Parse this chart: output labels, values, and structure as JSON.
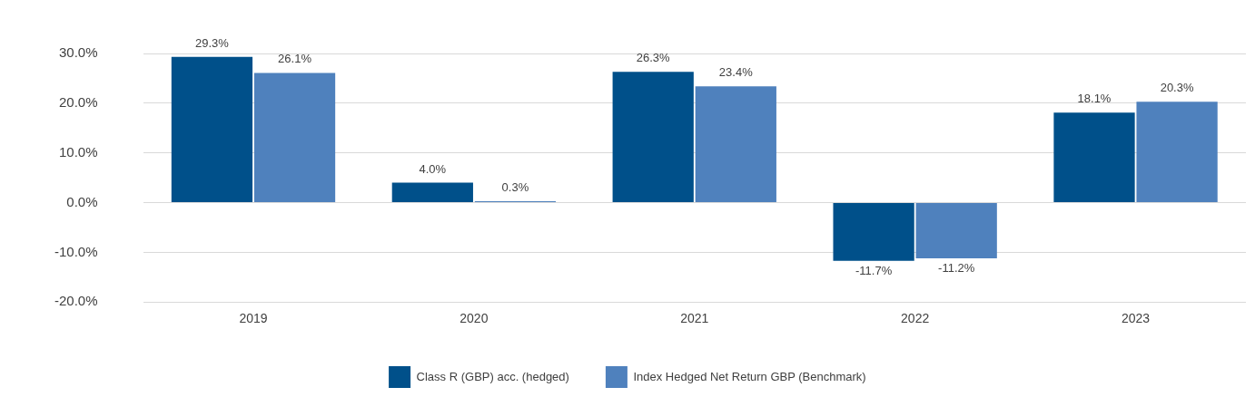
{
  "chart_data": {
    "type": "bar",
    "categories": [
      "2019",
      "2020",
      "2021",
      "2022",
      "2023"
    ],
    "series": [
      {
        "name": "Class R (GBP) acc. (hedged)",
        "color": "#00508a",
        "values": [
          29.3,
          4.0,
          26.3,
          -11.7,
          18.1
        ],
        "value_labels": [
          "29.3%",
          "4.0%",
          "26.3%",
          "-11.7%",
          "18.1%"
        ]
      },
      {
        "name": "Index Hedged Net Return GBP (Benchmark)",
        "color": "#4f81bd",
        "values": [
          26.1,
          0.3,
          23.4,
          -11.2,
          20.3
        ],
        "value_labels": [
          "26.1%",
          "0.3%",
          "23.4%",
          "-11.2%",
          "20.3%"
        ]
      }
    ],
    "ylim": [
      -20,
      30
    ],
    "yticks": [
      {
        "value": -20,
        "label": "-20.0%"
      },
      {
        "value": -10,
        "label": "-10.0%"
      },
      {
        "value": 0,
        "label": "0.0%"
      },
      {
        "value": 10,
        "label": "10.0%"
      },
      {
        "value": 20,
        "label": "20.0%"
      },
      {
        "value": 30,
        "label": "30.0%"
      }
    ],
    "grid": "y",
    "legend": "bottom"
  }
}
